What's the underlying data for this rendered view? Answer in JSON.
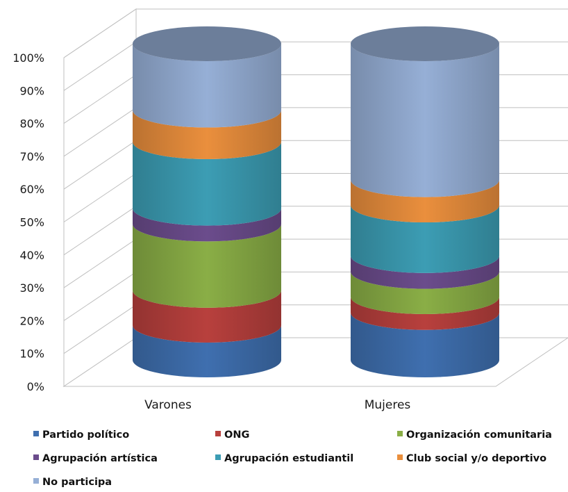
{
  "chart_data": {
    "type": "bar",
    "variant": "stacked-100-cylinder-3d",
    "categories": [
      "Varones",
      "Mujeres"
    ],
    "y_ticks": [
      "0%",
      "10%",
      "20%",
      "30%",
      "40%",
      "50%",
      "60%",
      "70%",
      "80%",
      "90%",
      "100%"
    ],
    "ylim": [
      0,
      100
    ],
    "grid": true,
    "legend_position": "bottom",
    "series": [
      {
        "name": "Partido político",
        "color": "#3F6FAF",
        "values": [
          11,
          15
        ]
      },
      {
        "name": "ONG",
        "color": "#B8403D",
        "values": [
          11,
          5
        ]
      },
      {
        "name": "Organización comunitaria",
        "color": "#8AAE46",
        "values": [
          21,
          8
        ]
      },
      {
        "name": "Agrupación artística",
        "color": "#6B4C8C",
        "values": [
          5,
          5
        ]
      },
      {
        "name": "Agrupación estudiantil",
        "color": "#3C9DB4",
        "values": [
          21,
          16
        ]
      },
      {
        "name": "Club social y/o deportivo",
        "color": "#EA8F3D",
        "values": [
          10,
          8
        ]
      },
      {
        "name": "No participa",
        "color": "#96AFD6",
        "values": [
          21,
          43
        ]
      }
    ]
  }
}
